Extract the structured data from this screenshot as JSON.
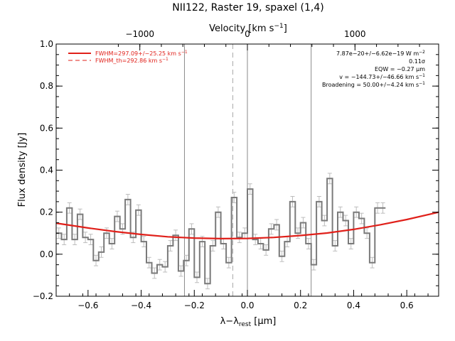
{
  "chart_data": {
    "type": "line",
    "title": "NII122, Raster 19, spaxel (1,4)",
    "xlabel_main": "λ−λ",
    "xlabel_sub": "rest",
    "xlabel_unit": " [μm]",
    "ylabel": "Flux density [Jy]",
    "top_axis_label_main": "Velocity [km s",
    "top_axis_label_exp": "−1",
    "top_axis_label_close": "]",
    "xlim": [
      -0.72,
      0.72
    ],
    "ylim": [
      -0.2,
      1.0
    ],
    "xticks": [
      -0.6,
      -0.4,
      -0.2,
      0.0,
      0.2,
      0.4,
      0.6
    ],
    "xtick_labels": [
      "−0.6",
      "−0.4",
      "−0.2",
      "0.0",
      "0.2",
      "0.4",
      "0.6"
    ],
    "yticks": [
      -0.2,
      0.0,
      0.2,
      0.4,
      0.6,
      0.8,
      1.0
    ],
    "ytick_labels": [
      "−0.2",
      "0.0",
      "0.2",
      "0.4",
      "0.6",
      "0.8",
      "1.0"
    ],
    "top_ticks_x": [
      -0.405,
      0.0,
      0.405
    ],
    "top_tick_labels": [
      "−1000",
      "0",
      "1000"
    ],
    "vertical_lines_solid": [
      -0.237,
      0.0,
      0.24
    ],
    "vertical_line_dashed": -0.055,
    "legend": [
      {
        "label": "FWHM=297.09+/−25.25 km s",
        "exp": "−1",
        "style": "solid"
      },
      {
        "label": "FWHM_th=292.86 km s",
        "exp": "−1",
        "style": "dashed"
      }
    ],
    "annotations": [
      {
        "main": "7.87e−20+/−6.62e−19 W m",
        "exp": "−2"
      },
      {
        "main": "0.11σ",
        "exp": ""
      },
      {
        "main": "EQW = −0.27 μm",
        "exp": ""
      },
      {
        "main": "v = −144.73+/−46.66 km s",
        "exp": "−1"
      },
      {
        "main": "Broadening = 50.00+/−4.24 km s",
        "exp": "−1"
      }
    ],
    "spectrum": {
      "x_start": -0.72,
      "bin_width": 0.02,
      "flux": [
        0.1,
        0.07,
        0.22,
        0.07,
        0.19,
        0.08,
        0.07,
        -0.03,
        0.01,
        0.1,
        0.05,
        0.18,
        0.12,
        0.26,
        0.08,
        0.21,
        0.06,
        -0.04,
        -0.09,
        -0.05,
        -0.06,
        0.04,
        0.09,
        -0.08,
        -0.03,
        0.12,
        -0.11,
        0.06,
        -0.14,
        0.04,
        0.2,
        0.05,
        -0.04,
        0.27,
        0.08,
        0.1,
        0.31,
        0.07,
        0.05,
        0.02,
        0.12,
        0.14,
        -0.01,
        0.06,
        0.25,
        0.1,
        0.15,
        0.05,
        -0.05,
        0.25,
        0.16,
        0.36,
        0.04,
        0.2,
        0.16,
        0.05,
        0.2,
        0.17,
        0.1,
        -0.04,
        0.22,
        0.22
      ],
      "err": 0.025,
      "color": "#7a7a7a",
      "err_color": "#bdbdbd"
    },
    "fit_curve": {
      "color": "#e0201a",
      "points": [
        [
          -0.72,
          0.148
        ],
        [
          -0.6,
          0.125
        ],
        [
          -0.5,
          0.108
        ],
        [
          -0.4,
          0.094
        ],
        [
          -0.3,
          0.083
        ],
        [
          -0.2,
          0.077
        ],
        [
          -0.1,
          0.074
        ],
        [
          0.0,
          0.075
        ],
        [
          0.1,
          0.08
        ],
        [
          0.2,
          0.089
        ],
        [
          0.3,
          0.101
        ],
        [
          0.4,
          0.118
        ],
        [
          0.5,
          0.14
        ],
        [
          0.6,
          0.165
        ],
        [
          0.72,
          0.2
        ]
      ]
    }
  }
}
